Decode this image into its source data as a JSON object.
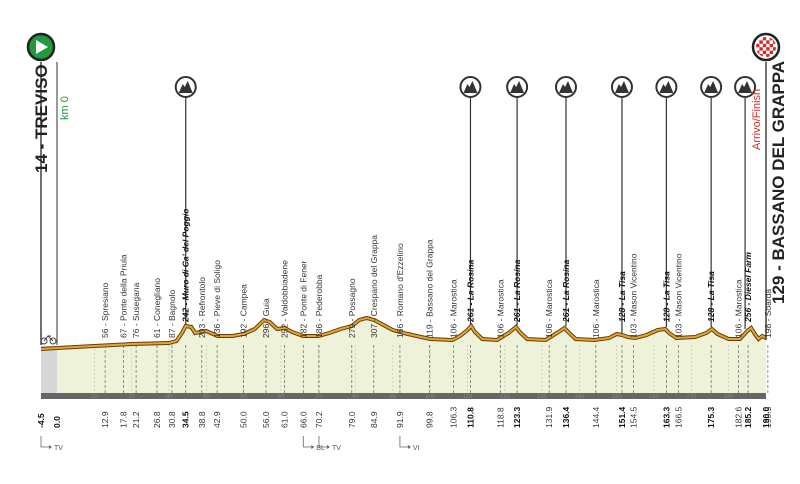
{
  "start": {
    "label": "14 - TREVISO",
    "km0": "km 0",
    "icon": "start-flag-green-play",
    "color": "#1f9a3d"
  },
  "finish": {
    "label": "129 - BASSANO DEL GRAPPA",
    "tag": "Arrivo/Finish",
    "icon": "finish-checkered-flag",
    "color": "#d42a2a"
  },
  "colors": {
    "profile_line": "#d9a52a",
    "profile_dark": "#6a3a12",
    "profile_fill": "#eef2d8",
    "axis_bar": "#666666",
    "climb_marker": "#333333"
  },
  "waypoints": [
    {
      "text": "56 - Spresiano",
      "km": "12.9",
      "bold": false
    },
    {
      "text": "67 - Ponte della Priula",
      "km": "17.8",
      "bold": false
    },
    {
      "text": "76 - Susegana",
      "km": "21.2",
      "bold": false
    },
    {
      "text": "61 - Conegliano",
      "km": "26.8",
      "bold": false
    },
    {
      "text": "87 - Bagnolo",
      "km": "30.8",
      "bold": false
    },
    {
      "text": "242 - Muro di Ca' del Poggio",
      "km": "34.5",
      "bold": true
    },
    {
      "text": "203 - Refrontolo",
      "km": "38.8",
      "bold": false
    },
    {
      "text": "136 - Pieve di Soligo",
      "km": "42.9",
      "bold": false
    },
    {
      "text": "192 - Campea",
      "km": "50.0",
      "bold": false
    },
    {
      "text": "296 - Guia",
      "km": "56.0",
      "bold": false
    },
    {
      "text": "252 - Valdobbiadene",
      "km": "61.0",
      "bold": false
    },
    {
      "text": "182 - Ponte di Fener",
      "km": "66.0",
      "bold": false
    },
    {
      "text": "186 - Pederobba",
      "km": "70.2",
      "bold": false
    },
    {
      "text": "279 - Possagno",
      "km": "79.0",
      "bold": false
    },
    {
      "text": "307 - Crespano del Grappa",
      "km": "84.9",
      "bold": false
    },
    {
      "text": "166 - Romano d'Ezzelino",
      "km": "91.9",
      "bold": false
    },
    {
      "text": "119 - Bassano del Grappa",
      "km": "99.8",
      "bold": false
    },
    {
      "text": "106 - Marostica",
      "km": "106.3",
      "bold": false
    },
    {
      "text": "261 - La Rosina",
      "km": "110.8",
      "bold": true
    },
    {
      "text": "106 - Marostica",
      "km": "118.8",
      "bold": false
    },
    {
      "text": "261 - La Rosina",
      "km": "123.3",
      "bold": true
    },
    {
      "text": "106 - Marostica",
      "km": "131.9",
      "bold": false
    },
    {
      "text": "261 - La Rosina",
      "km": "136.4",
      "bold": true
    },
    {
      "text": "106 - Marostica",
      "km": "144.4",
      "bold": false
    },
    {
      "text": "128 - La Tisa",
      "km": "151.4",
      "bold": true
    },
    {
      "text": "103 - Mason Vicentino",
      "km": "154.5",
      "bold": false
    },
    {
      "text": "128 - La Tisa",
      "km": "163.3",
      "bold": true
    },
    {
      "text": "103 - Mason Vicentino",
      "km": "166.5",
      "bold": false
    },
    {
      "text": "128 - La Tisa",
      "km": "175.3",
      "bold": true
    },
    {
      "text": "106 - Marostica",
      "km": "182.6",
      "bold": false
    },
    {
      "text": "256 - Diesel Farm",
      "km": "185.2",
      "bold": true
    },
    {
      "text": "198 - Soarda",
      "km": "190.5",
      "bold": false
    }
  ],
  "climbs_km": [
    "34.5",
    "110.8",
    "123.3",
    "136.4",
    "151.4",
    "163.3",
    "175.3",
    "185.2"
  ],
  "extra_km": [
    "-4.5",
    "0.0",
    "190.0"
  ],
  "grid_ticks": [
    "10",
    "20",
    "30",
    "40",
    "50",
    "60",
    "70",
    "80",
    "90",
    "100",
    "110",
    "120",
    "130",
    "140",
    "150",
    "160",
    "170",
    "180"
  ],
  "intermediate_marks": [
    {
      "km": "-4.5",
      "label": "TV"
    },
    {
      "km": "66.0",
      "label": "BL"
    },
    {
      "km": "70.2",
      "label": "TV"
    },
    {
      "km": "91.9",
      "label": "VI"
    }
  ]
}
